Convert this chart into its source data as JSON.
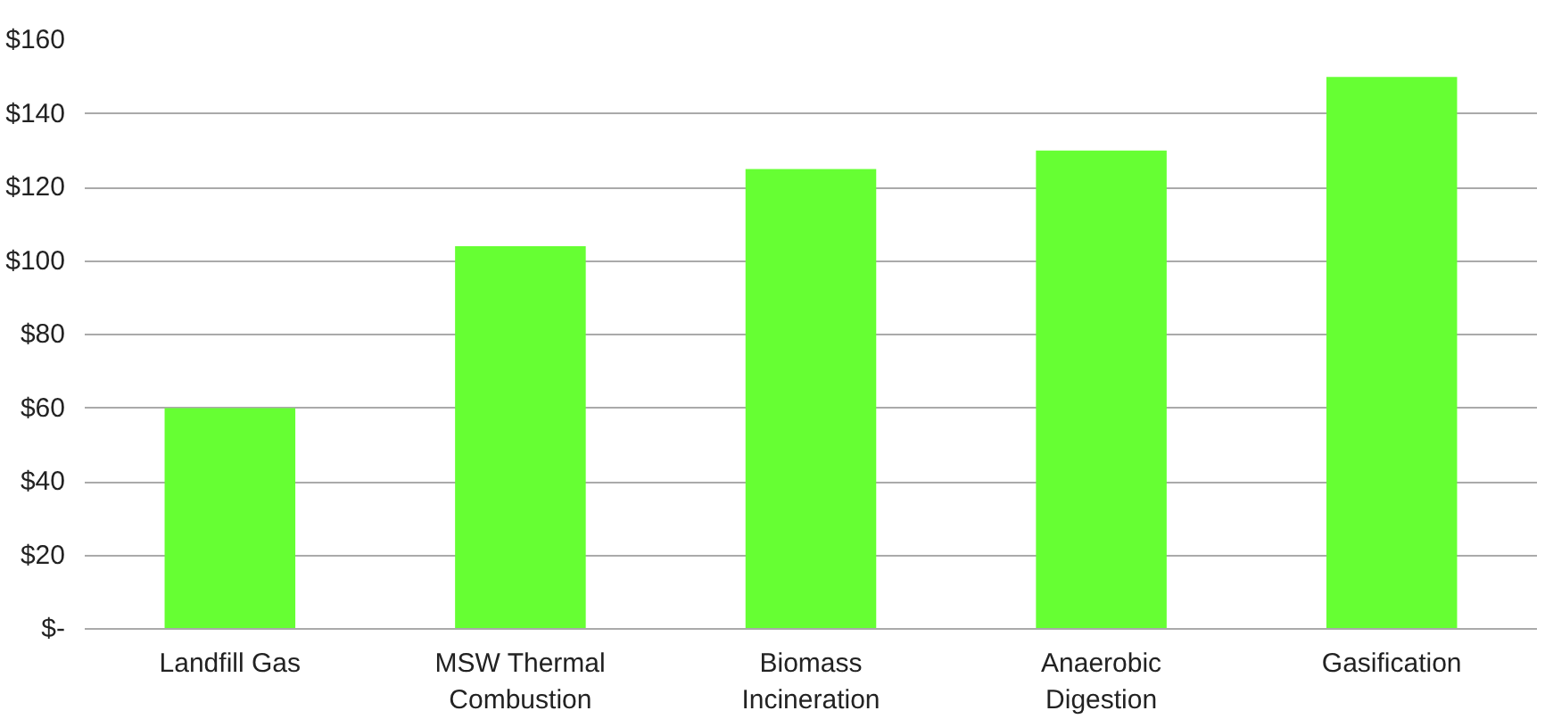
{
  "chart_data": {
    "type": "bar",
    "categories": [
      "Landfill Gas",
      "MSW Thermal Combustion",
      "Biomass Incineration",
      "Anaerobic Digestion",
      "Gasification"
    ],
    "values": [
      60,
      104,
      125,
      130,
      150
    ],
    "color": "#66ff33",
    "ylim": [
      0,
      160
    ],
    "yticks": [
      {
        "value": 0,
        "label": "$-"
      },
      {
        "value": 20,
        "label": "$20"
      },
      {
        "value": 40,
        "label": "$40"
      },
      {
        "value": 60,
        "label": "$60"
      },
      {
        "value": 80,
        "label": "$80"
      },
      {
        "value": 100,
        "label": "$100"
      },
      {
        "value": 120,
        "label": "$120"
      },
      {
        "value": 140,
        "label": "$140"
      },
      {
        "value": 160,
        "label": "$160"
      }
    ],
    "grid": "y"
  }
}
